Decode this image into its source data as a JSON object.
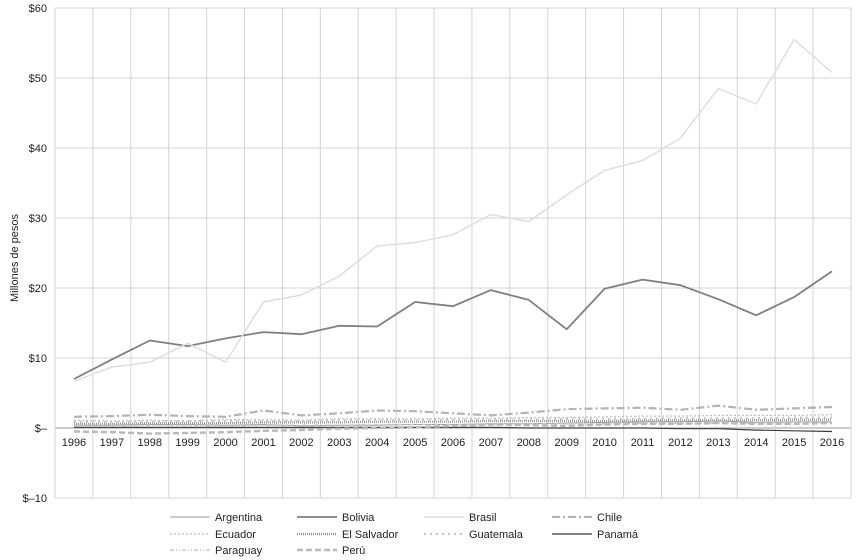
{
  "chart_data": {
    "type": "line",
    "ylabel": "Millones de pesos",
    "xlabel": "",
    "ylim": [
      -10,
      60
    ],
    "y_ticks": [
      {
        "value": 60,
        "label": "$60"
      },
      {
        "value": 50,
        "label": "$50"
      },
      {
        "value": 40,
        "label": "$40"
      },
      {
        "value": 30,
        "label": "$30"
      },
      {
        "value": 20,
        "label": "$20"
      },
      {
        "value": 10,
        "label": "$10"
      },
      {
        "value": 0,
        "label": "$–"
      },
      {
        "value": -10,
        "label": "$–10"
      }
    ],
    "categories": [
      "1996",
      "1997",
      "1998",
      "1999",
      "2000",
      "2001",
      "2002",
      "2003",
      "2004",
      "2005",
      "2006",
      "2007",
      "2008",
      "2009",
      "2010",
      "2011",
      "2012",
      "2013",
      "2014",
      "2015",
      "2016"
    ],
    "grid": true,
    "legend_position": "bottom",
    "series": [
      {
        "name": "Argentina",
        "color": "#999999",
        "dash": "",
        "width": 1,
        "values": [
          0.4,
          0.4,
          0.5,
          0.5,
          0.4,
          0.5,
          0.3,
          0.4,
          0.4,
          0.5,
          0.5,
          0.6,
          0.6,
          0.7,
          0.8,
          0.9,
          0.9,
          1.0,
          0.8,
          0.9,
          0.9
        ]
      },
      {
        "name": "Bolivia",
        "color": "#7f7f7f",
        "dash": "",
        "width": 1.8,
        "values": [
          7.0,
          9.8,
          12.5,
          11.7,
          12.8,
          13.7,
          13.4,
          14.6,
          14.5,
          18.0,
          17.4,
          19.7,
          18.3,
          14.1,
          19.9,
          21.2,
          20.4,
          18.4,
          16.1,
          18.7,
          22.4
        ]
      },
      {
        "name": "Brasil",
        "color": "#dcdcdc",
        "dash": "",
        "width": 1.4,
        "values": [
          6.7,
          8.7,
          9.4,
          12.1,
          9.4,
          18.0,
          19.0,
          21.7,
          26.0,
          26.5,
          27.6,
          30.5,
          29.5,
          33.3,
          36.8,
          38.2,
          41.4,
          48.5,
          46.3,
          55.5,
          50.8
        ]
      },
      {
        "name": "Chile",
        "color": "#b3b3b3",
        "dash": "8,3,2,3",
        "width": 2.2,
        "values": [
          1.6,
          1.7,
          1.9,
          1.7,
          1.6,
          2.5,
          1.8,
          2.1,
          2.5,
          2.4,
          2.1,
          1.8,
          2.2,
          2.7,
          2.8,
          2.9,
          2.6,
          3.2,
          2.6,
          2.8,
          3.0
        ]
      },
      {
        "name": "Ecuador",
        "color": "#bdbdbd",
        "dash": "2,2",
        "width": 1.2,
        "values": [
          1.1,
          1.0,
          1.1,
          1.0,
          1.2,
          1.2,
          1.1,
          1.3,
          1.3,
          1.3,
          1.4,
          1.4,
          1.5,
          1.5,
          1.6,
          1.7,
          1.7,
          1.8,
          1.8,
          1.8,
          1.9
        ]
      },
      {
        "name": "El Salvador",
        "color": "#9a9a9a",
        "dash": "1,1",
        "width": 2.2,
        "values": [
          0.6,
          0.6,
          0.7,
          0.7,
          0.7,
          0.8,
          0.8,
          0.8,
          0.9,
          0.9,
          0.9,
          1.0,
          1.0,
          1.0,
          1.0,
          1.1,
          1.1,
          1.1,
          1.1,
          1.2,
          1.2
        ]
      },
      {
        "name": "Guatemala",
        "color": "#c4c4c4",
        "dash": "2,4",
        "width": 2,
        "values": [
          0.9,
          0.9,
          0.9,
          1.0,
          1.0,
          1.0,
          1.0,
          1.1,
          1.1,
          1.1,
          1.2,
          1.2,
          1.2,
          1.3,
          1.3,
          1.3,
          1.4,
          1.4,
          1.4,
          1.5,
          1.5
        ]
      },
      {
        "name": "Panamá",
        "color": "#3a3a3a",
        "dash": "",
        "width": 1.2,
        "values": [
          0.1,
          0.1,
          0.1,
          0.1,
          0.1,
          0.1,
          0.1,
          0.1,
          0.1,
          0.1,
          0.1,
          0.1,
          0.0,
          0.0,
          0.0,
          0.0,
          -0.1,
          -0.1,
          -0.3,
          -0.4,
          -0.5
        ]
      },
      {
        "name": "Paraguay",
        "color": "#c8c8c8",
        "dash": "4,2,1,2,1,2",
        "width": 1.6,
        "values": [
          0.3,
          0.3,
          0.4,
          0.4,
          0.3,
          0.4,
          0.4,
          0.4,
          0.5,
          0.5,
          0.5,
          0.5,
          0.6,
          0.6,
          0.6,
          0.7,
          0.7,
          0.7,
          0.7,
          0.8,
          0.8
        ]
      },
      {
        "name": "Perú",
        "color": "#b8b8b8",
        "dash": "6,3",
        "width": 2.4,
        "values": [
          -0.5,
          -0.6,
          -0.8,
          -0.7,
          -0.6,
          -0.4,
          -0.3,
          -0.1,
          0.0,
          0.1,
          0.3,
          0.5,
          0.4,
          0.3,
          0.5,
          0.6,
          0.6,
          0.7,
          0.6,
          0.6,
          0.7
        ]
      }
    ]
  }
}
